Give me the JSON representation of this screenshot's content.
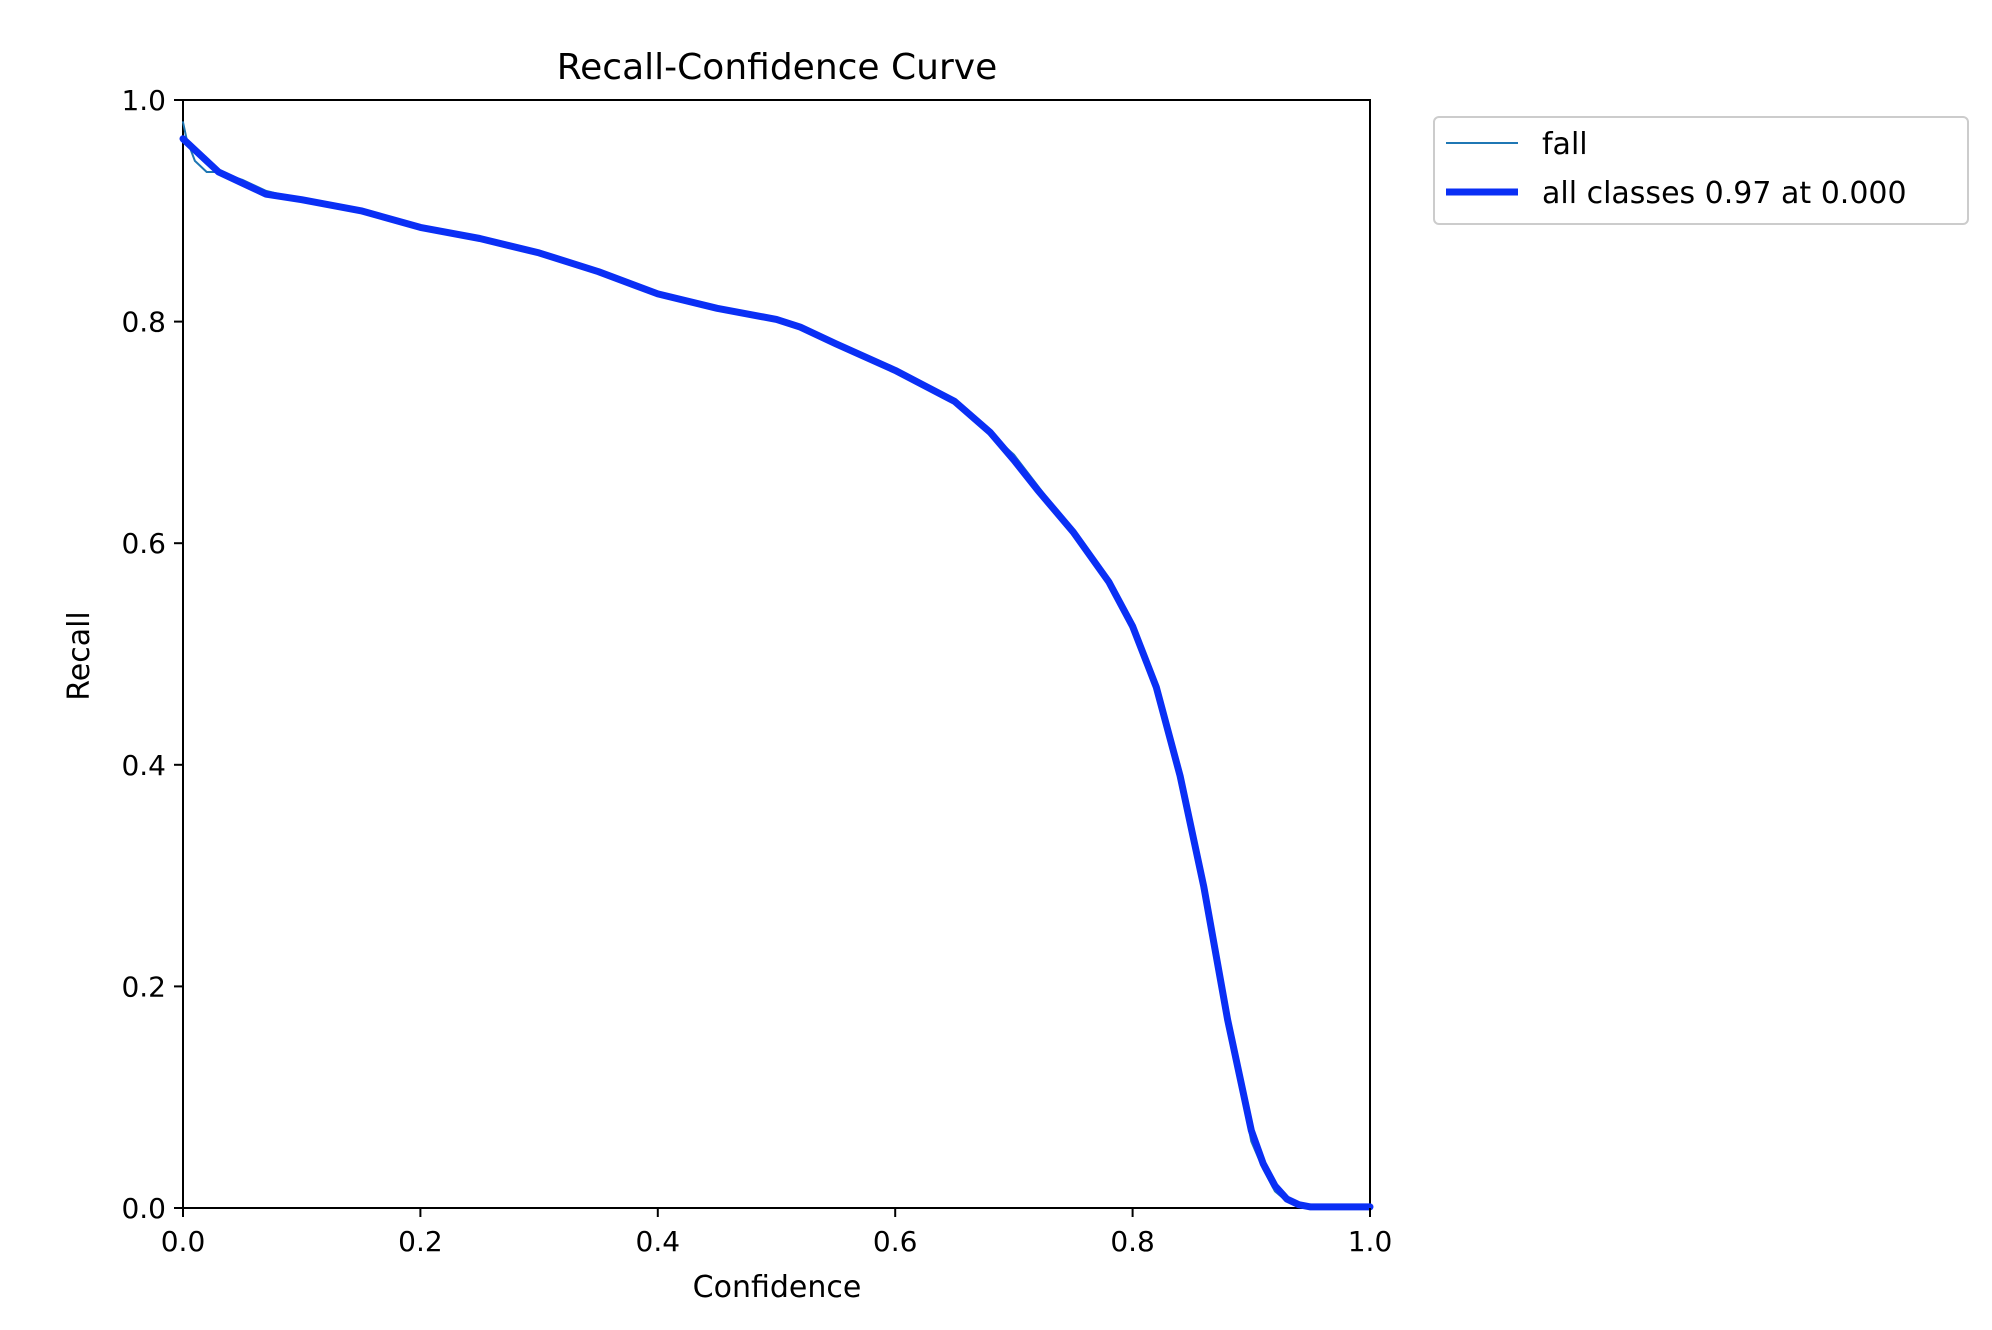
{
  "chart_data": {
    "type": "line",
    "title": "Recall-Confidence Curve",
    "xlabel": "Confidence",
    "ylabel": "Recall",
    "xlim": [
      0,
      1
    ],
    "ylim": [
      0,
      1
    ],
    "xticks": [
      "0.0",
      "0.2",
      "0.4",
      "0.6",
      "0.8",
      "1.0"
    ],
    "yticks": [
      "0.0",
      "0.2",
      "0.4",
      "0.6",
      "0.8",
      "1.0"
    ],
    "grid": false,
    "legend_position": "outside-top-right",
    "series": [
      {
        "name": "fall",
        "color": "#1f77b4",
        "x": [
          0.0,
          0.003,
          0.01,
          0.02,
          0.03,
          0.05,
          0.07,
          0.1,
          0.15,
          0.2,
          0.25,
          0.3,
          0.35,
          0.4,
          0.45,
          0.5,
          0.55,
          0.6,
          0.65,
          0.7,
          0.75,
          0.78,
          0.8,
          0.82,
          0.84,
          0.86,
          0.88,
          0.9,
          0.91,
          0.92,
          0.93,
          0.94,
          0.95,
          0.97,
          1.0
        ],
        "y": [
          0.98,
          0.965,
          0.945,
          0.935,
          0.935,
          0.928,
          0.918,
          0.91,
          0.9,
          0.885,
          0.875,
          0.862,
          0.845,
          0.825,
          0.812,
          0.802,
          0.78,
          0.756,
          0.728,
          0.68,
          0.61,
          0.565,
          0.525,
          0.47,
          0.39,
          0.29,
          0.17,
          0.06,
          0.035,
          0.015,
          0.006,
          0.002,
          0.001,
          0.001,
          0.001
        ]
      },
      {
        "name": "all classes 0.97 at 0.000",
        "color": "#0a2ff5",
        "x": [
          0.0,
          0.01,
          0.02,
          0.03,
          0.05,
          0.07,
          0.1,
          0.15,
          0.2,
          0.25,
          0.3,
          0.35,
          0.4,
          0.45,
          0.5,
          0.52,
          0.55,
          0.6,
          0.65,
          0.68,
          0.7,
          0.72,
          0.75,
          0.78,
          0.8,
          0.82,
          0.84,
          0.86,
          0.88,
          0.9,
          0.91,
          0.92,
          0.93,
          0.94,
          0.95,
          0.97,
          1.0
        ],
        "y": [
          0.965,
          0.955,
          0.945,
          0.935,
          0.925,
          0.915,
          0.91,
          0.9,
          0.885,
          0.875,
          0.862,
          0.845,
          0.825,
          0.812,
          0.802,
          0.795,
          0.78,
          0.756,
          0.728,
          0.7,
          0.675,
          0.648,
          0.61,
          0.565,
          0.525,
          0.47,
          0.39,
          0.29,
          0.17,
          0.07,
          0.04,
          0.02,
          0.008,
          0.003,
          0.001,
          0.001,
          0.001
        ]
      }
    ]
  }
}
